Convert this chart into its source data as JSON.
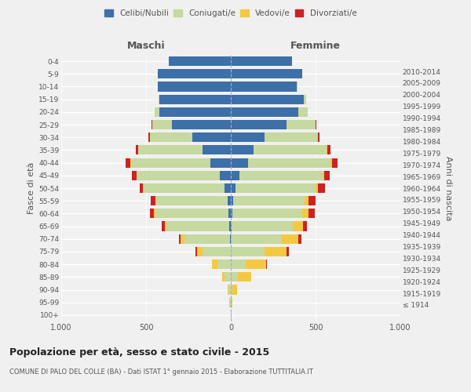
{
  "age_groups": [
    "100+",
    "95-99",
    "90-94",
    "85-89",
    "80-84",
    "75-79",
    "70-74",
    "65-69",
    "60-64",
    "55-59",
    "50-54",
    "45-49",
    "40-44",
    "35-39",
    "30-34",
    "25-29",
    "20-24",
    "15-19",
    "10-14",
    "5-9",
    "0-4"
  ],
  "birth_years": [
    "≤ 1914",
    "1915-1919",
    "1920-1924",
    "1925-1929",
    "1930-1934",
    "1935-1939",
    "1940-1944",
    "1945-1949",
    "1950-1954",
    "1955-1959",
    "1960-1964",
    "1965-1969",
    "1970-1974",
    "1975-1979",
    "1980-1984",
    "1985-1989",
    "1990-1994",
    "1995-1999",
    "2000-2004",
    "2005-2009",
    "2010-2014"
  ],
  "male": {
    "celibe": [
      0,
      0,
      0,
      0,
      0,
      0,
      4,
      8,
      15,
      20,
      35,
      65,
      120,
      165,
      225,
      345,
      420,
      420,
      430,
      430,
      365
    ],
    "coniugato": [
      2,
      5,
      15,
      35,
      80,
      165,
      270,
      370,
      430,
      420,
      480,
      490,
      470,
      380,
      250,
      120,
      30,
      5,
      2,
      1,
      0
    ],
    "vedovo": [
      0,
      2,
      5,
      15,
      30,
      35,
      20,
      10,
      8,
      5,
      3,
      2,
      1,
      1,
      1,
      0,
      0,
      0,
      0,
      0,
      0
    ],
    "divorziato": [
      0,
      0,
      0,
      1,
      2,
      8,
      12,
      20,
      25,
      25,
      20,
      25,
      30,
      15,
      8,
      3,
      1,
      0,
      0,
      0,
      0
    ]
  },
  "female": {
    "nubile": [
      0,
      0,
      0,
      0,
      0,
      0,
      2,
      5,
      10,
      15,
      30,
      50,
      100,
      135,
      200,
      330,
      400,
      430,
      390,
      420,
      360
    ],
    "coniugata": [
      1,
      3,
      10,
      40,
      90,
      200,
      295,
      360,
      410,
      420,
      470,
      490,
      490,
      430,
      310,
      170,
      55,
      15,
      3,
      1,
      0
    ],
    "vedova": [
      2,
      8,
      25,
      80,
      120,
      130,
      100,
      60,
      40,
      25,
      15,
      10,
      5,
      3,
      2,
      1,
      0,
      0,
      0,
      0,
      0
    ],
    "divorziata": [
      0,
      0,
      1,
      2,
      4,
      12,
      18,
      25,
      35,
      40,
      40,
      35,
      35,
      20,
      10,
      4,
      1,
      0,
      0,
      0,
      0
    ]
  },
  "colors": {
    "celibe": "#3d6fa8",
    "coniugato": "#c5d9a0",
    "vedovo": "#f5c842",
    "divorziato": "#cc2222"
  },
  "xlim": 1000,
  "title": "Popolazione per età, sesso e stato civile - 2015",
  "subtitle": "COMUNE DI PALO DEL COLLE (BA) - Dati ISTAT 1° gennaio 2015 - Elaborazione TUTTITALIA.IT",
  "ylabel_left": "Fasce di età",
  "ylabel_right": "Anni di nascita",
  "xlabel_left": "Maschi",
  "xlabel_right": "Femmine",
  "bg_color": "#f0f0f0",
  "grid_color": "#ffffff",
  "legend_labels": [
    "Celibi/Nubili",
    "Coniugati/e",
    "Vedovi/e",
    "Divorziati/e"
  ]
}
